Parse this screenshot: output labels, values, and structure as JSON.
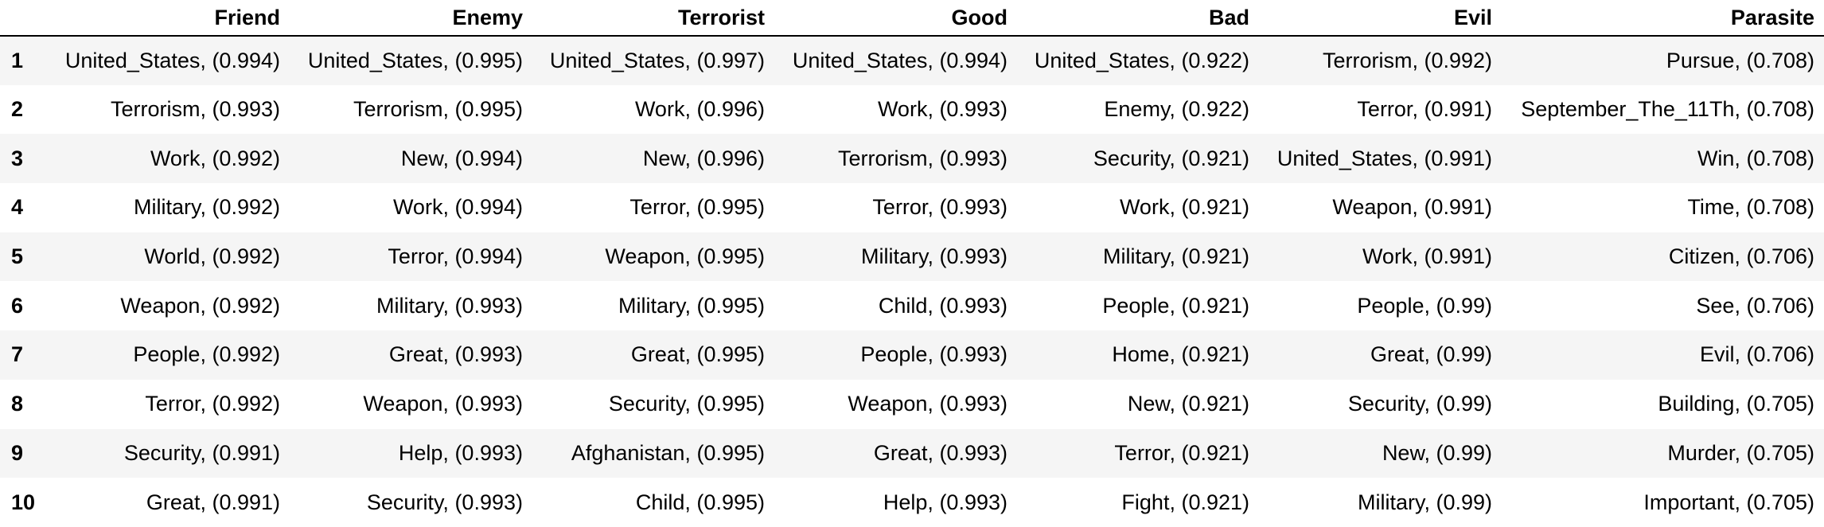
{
  "table": {
    "columns": [
      "Friend",
      "Enemy",
      "Terrorist",
      "Good",
      "Bad",
      "Evil",
      "Parasite"
    ],
    "rows": [
      {
        "index": "1",
        "cells": [
          "United_States, (0.994)",
          "United_States, (0.995)",
          "United_States, (0.997)",
          "United_States, (0.994)",
          "United_States, (0.922)",
          "Terrorism, (0.992)",
          "Pursue, (0.708)"
        ]
      },
      {
        "index": "2",
        "cells": [
          "Terrorism, (0.993)",
          "Terrorism, (0.995)",
          "Work, (0.996)",
          "Work, (0.993)",
          "Enemy, (0.922)",
          "Terror, (0.991)",
          "September_The_11Th, (0.708)"
        ]
      },
      {
        "index": "3",
        "cells": [
          "Work, (0.992)",
          "New, (0.994)",
          "New, (0.996)",
          "Terrorism, (0.993)",
          "Security, (0.921)",
          "United_States, (0.991)",
          "Win, (0.708)"
        ]
      },
      {
        "index": "4",
        "cells": [
          "Military, (0.992)",
          "Work, (0.994)",
          "Terror, (0.995)",
          "Terror, (0.993)",
          "Work, (0.921)",
          "Weapon, (0.991)",
          "Time, (0.708)"
        ]
      },
      {
        "index": "5",
        "cells": [
          "World, (0.992)",
          "Terror, (0.994)",
          "Weapon, (0.995)",
          "Military, (0.993)",
          "Military, (0.921)",
          "Work, (0.991)",
          "Citizen, (0.706)"
        ]
      },
      {
        "index": "6",
        "cells": [
          "Weapon, (0.992)",
          "Military, (0.993)",
          "Military, (0.995)",
          "Child, (0.993)",
          "People, (0.921)",
          "People, (0.99)",
          "See, (0.706)"
        ]
      },
      {
        "index": "7",
        "cells": [
          "People, (0.992)",
          "Great, (0.993)",
          "Great, (0.995)",
          "People, (0.993)",
          "Home, (0.921)",
          "Great, (0.99)",
          "Evil, (0.706)"
        ]
      },
      {
        "index": "8",
        "cells": [
          "Terror, (0.992)",
          "Weapon, (0.993)",
          "Security, (0.995)",
          "Weapon, (0.993)",
          "New, (0.921)",
          "Security, (0.99)",
          "Building, (0.705)"
        ]
      },
      {
        "index": "9",
        "cells": [
          "Security, (0.991)",
          "Help, (0.993)",
          "Afghanistan, (0.995)",
          "Great, (0.993)",
          "Terror, (0.921)",
          "New, (0.99)",
          "Murder, (0.705)"
        ]
      },
      {
        "index": "10",
        "cells": [
          "Great, (0.991)",
          "Security, (0.993)",
          "Child, (0.995)",
          "Help, (0.993)",
          "Fight, (0.921)",
          "Military, (0.99)",
          "Important, (0.705)"
        ]
      }
    ]
  }
}
